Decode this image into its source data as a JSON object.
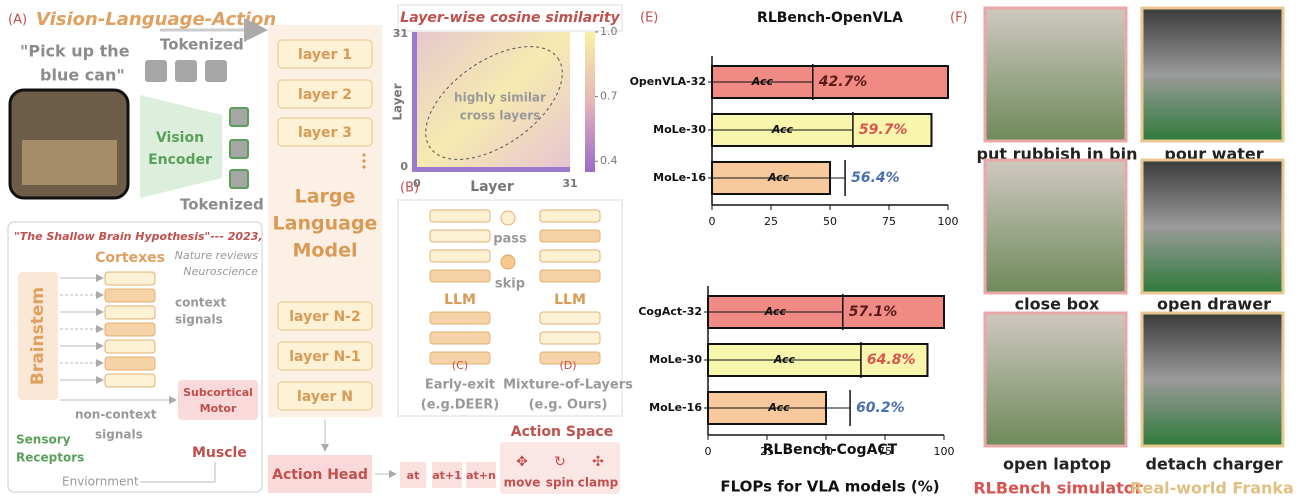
{
  "panel_a": {
    "label": "(A)",
    "title": "Vision-Language-Action",
    "instruction": [
      "\"Pick up the",
      "blue can\""
    ],
    "tokenized_text": "Tokenized",
    "vision_encoder": [
      "Vision",
      "Encoder"
    ],
    "tokenized_image": "Tokenized"
  },
  "llm": {
    "layers": [
      "layer 1",
      "layer 2",
      "layer 3",
      "layer N-2",
      "layer N-1",
      "layer N"
    ],
    "name": [
      "Large",
      "Language",
      "Model"
    ]
  },
  "action": {
    "head": "Action Head",
    "tokens": [
      "at",
      "at+1",
      "at+n"
    ],
    "space_title": "Action Space",
    "actions": [
      "move",
      "spin",
      "clamp"
    ]
  },
  "brain": {
    "quote": "\"The Shallow Brain Hypothesis\"--- 2023,",
    "source": [
      "Nature reviews",
      "Neuroscience"
    ],
    "cortexes": "Cortexes",
    "brainstem": "Brainstem",
    "context_signals": [
      "context",
      "signals"
    ],
    "subcortical": [
      "Subcortical",
      "Motor"
    ],
    "non_context_signals": [
      "non-context",
      "signals"
    ],
    "muscle": "Muscle",
    "receptors": [
      "Sensory",
      "Receptors"
    ],
    "environment": "Enviornment"
  },
  "heatmap": {
    "title": "Layer-wise cosine similarity",
    "xlabel": "Layer",
    "ylabel": "Layer",
    "xlim": [
      0,
      31
    ],
    "ylim": [
      0,
      31
    ],
    "xticks": [
      0,
      31
    ],
    "yticks": [
      0,
      31
    ],
    "annotation": [
      "highly similar",
      "cross layers"
    ],
    "colorbar_lim": [
      0.35,
      1
    ],
    "colorbar_ticks": [
      {
        "value": 1,
        "label": "1.0"
      },
      0.7,
      0.4
    ]
  },
  "panel_b": {
    "label": "(B)",
    "pass": "pass",
    "skip": "skip",
    "llm_left": "LLM",
    "llm_right": "LLM",
    "left": [
      "(C)",
      "Early-exit",
      "(e.g.DEER)"
    ],
    "right": [
      "(D)",
      "Mixture-of-Layers",
      "(e.g. Ours)"
    ]
  },
  "panel_e_label": "(E)",
  "chart_data": [
    {
      "type": "bar",
      "orientation": "horizontal",
      "title": "RLBench-OpenVLA",
      "categories": [
        "OpenVLA-32",
        "MoLe-30",
        "MoLe-16"
      ],
      "values": [
        100,
        93,
        50
      ],
      "colors": [
        "#f08a84",
        "#f8f5ad",
        "#f8c99c"
      ],
      "accuracy": [
        42.7,
        59.7,
        56.4
      ],
      "accuracy_labels": [
        "42.7%",
        "59.7%",
        "56.4%"
      ],
      "accuracy_label_colors": [
        "#5a1a1a",
        "#d9534f",
        "#4a6fb5"
      ],
      "acc_text": "Acc",
      "xlim": [
        0,
        100
      ],
      "xticks": [
        0,
        25,
        50,
        75,
        100
      ]
    },
    {
      "type": "bar",
      "orientation": "horizontal",
      "title": "RLBench-CogACT",
      "categories": [
        "CogAct-32",
        "MoLe-30",
        "MoLe-16"
      ],
      "values": [
        100,
        93,
        50
      ],
      "colors": [
        "#f08a84",
        "#f8f5ad",
        "#f8c99c"
      ],
      "accuracy": [
        57.1,
        64.8,
        60.2
      ],
      "accuracy_labels": [
        "57.1%",
        "64.8%",
        "60.2%"
      ],
      "accuracy_label_colors": [
        "#5a1a1a",
        "#d9534f",
        "#4a6fb5"
      ],
      "acc_text": "Acc",
      "xlim": [
        0,
        100
      ],
      "xticks": [
        0,
        25,
        50,
        75,
        100
      ],
      "xlabel": "FLOPs for VLA models (%)"
    }
  ],
  "panel_f": {
    "label": "(F)",
    "tasks": [
      "put rubbish in bin",
      "pour water",
      "close box",
      "open drawer",
      "open laptop",
      "detach charger"
    ],
    "sim_label": "RLBench simulator",
    "real_label": "Real-world Franka"
  }
}
